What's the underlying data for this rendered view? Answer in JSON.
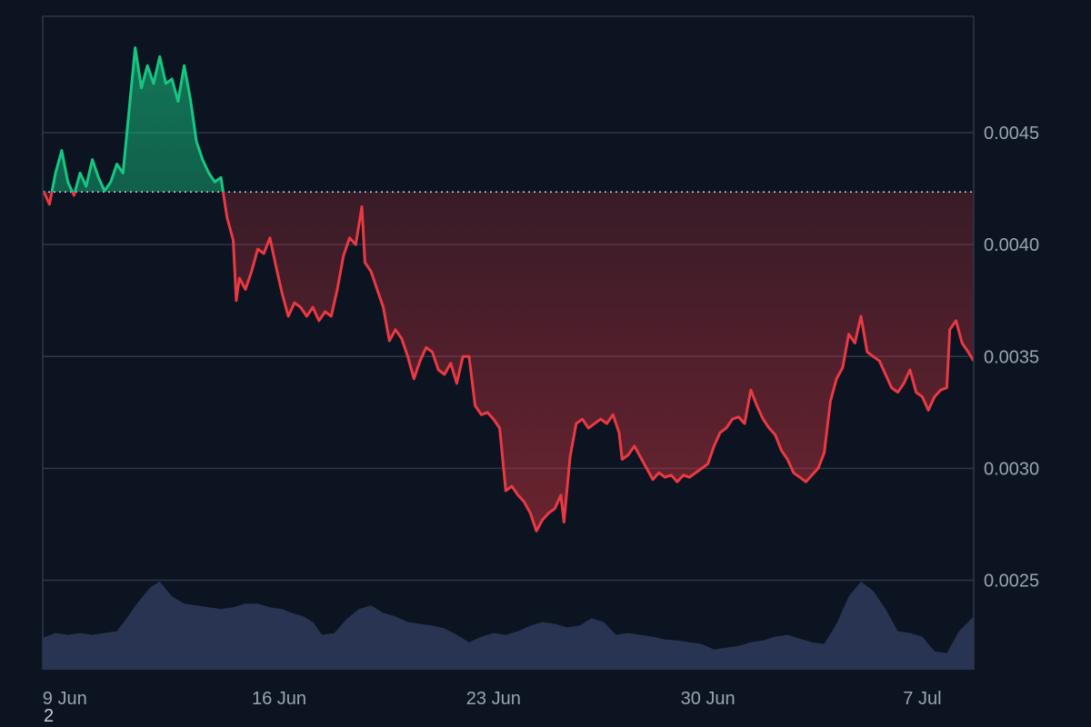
{
  "chart_data": {
    "type": "area",
    "baseline": 0.004235,
    "colors": {
      "background": "#0d1421",
      "above": "#16c784",
      "below": "#ea3943",
      "grid": "#2e3648",
      "volume": "#2f3a5c",
      "text": "#9aa3b2"
    },
    "y_range": [
      0.0021,
      0.00502
    ],
    "y_ticks": [
      {
        "value": 0.0025,
        "label": "0.0025"
      },
      {
        "value": 0.003,
        "label": "0.0030"
      },
      {
        "value": 0.0035,
        "label": "0.0035"
      },
      {
        "value": 0.004,
        "label": "0.0040"
      },
      {
        "value": 0.0045,
        "label": "0.0045"
      }
    ],
    "x_range": [
      8.28,
      38.68
    ],
    "x_ticks": [
      {
        "value": 9,
        "label": "9 Jun"
      },
      {
        "value": 16,
        "label": "16 Jun"
      },
      {
        "value": 23,
        "label": "23 Jun"
      },
      {
        "value": 30,
        "label": "30 Jun"
      },
      {
        "value": 37,
        "label": "7 Jul"
      }
    ],
    "x_unit_note": "day of June (9 Jun = 9, 7 Jul = 37)",
    "series": [
      {
        "values": [
          [
            8.3,
            0.00424
          ],
          [
            8.5,
            0.00418
          ],
          [
            8.7,
            0.00432
          ],
          [
            8.9,
            0.00442
          ],
          [
            9.1,
            0.00428
          ],
          [
            9.3,
            0.00422
          ],
          [
            9.5,
            0.00432
          ],
          [
            9.7,
            0.00426
          ],
          [
            9.9,
            0.00438
          ],
          [
            10.1,
            0.0043
          ],
          [
            10.3,
            0.00424
          ],
          [
            10.5,
            0.00428
          ],
          [
            10.7,
            0.00436
          ],
          [
            10.9,
            0.00432
          ],
          [
            11.1,
            0.0046
          ],
          [
            11.3,
            0.00488
          ],
          [
            11.5,
            0.0047
          ],
          [
            11.7,
            0.0048
          ],
          [
            11.9,
            0.00472
          ],
          [
            12.1,
            0.00484
          ],
          [
            12.3,
            0.00472
          ],
          [
            12.5,
            0.00474
          ],
          [
            12.7,
            0.00464
          ],
          [
            12.9,
            0.0048
          ],
          [
            13.1,
            0.00465
          ],
          [
            13.3,
            0.00446
          ],
          [
            13.5,
            0.00438
          ],
          [
            13.7,
            0.00432
          ],
          [
            13.9,
            0.00428
          ],
          [
            14.1,
            0.0043
          ],
          [
            14.3,
            0.00412
          ],
          [
            14.5,
            0.00402
          ],
          [
            14.6,
            0.00375
          ],
          [
            14.7,
            0.00385
          ],
          [
            14.9,
            0.0038
          ],
          [
            15.1,
            0.00388
          ],
          [
            15.3,
            0.00398
          ],
          [
            15.5,
            0.00396
          ],
          [
            15.7,
            0.00403
          ],
          [
            15.9,
            0.0039
          ],
          [
            16.1,
            0.00378
          ],
          [
            16.3,
            0.00368
          ],
          [
            16.5,
            0.00374
          ],
          [
            16.7,
            0.00372
          ],
          [
            16.9,
            0.00368
          ],
          [
            17.1,
            0.00372
          ],
          [
            17.3,
            0.00366
          ],
          [
            17.5,
            0.0037
          ],
          [
            17.7,
            0.00368
          ],
          [
            17.9,
            0.0038
          ],
          [
            18.1,
            0.00395
          ],
          [
            18.3,
            0.00403
          ],
          [
            18.5,
            0.004
          ],
          [
            18.7,
            0.00417
          ],
          [
            18.8,
            0.00392
          ],
          [
            19.0,
            0.00388
          ],
          [
            19.2,
            0.0038
          ],
          [
            19.4,
            0.00372
          ],
          [
            19.6,
            0.00357
          ],
          [
            19.8,
            0.00362
          ],
          [
            20.0,
            0.00358
          ],
          [
            20.2,
            0.0035
          ],
          [
            20.4,
            0.0034
          ],
          [
            20.6,
            0.00348
          ],
          [
            20.8,
            0.00354
          ],
          [
            21.0,
            0.00352
          ],
          [
            21.2,
            0.00344
          ],
          [
            21.4,
            0.00342
          ],
          [
            21.6,
            0.00347
          ],
          [
            21.8,
            0.00338
          ],
          [
            22.0,
            0.0035
          ],
          [
            22.2,
            0.0035
          ],
          [
            22.4,
            0.00328
          ],
          [
            22.6,
            0.00324
          ],
          [
            22.8,
            0.00325
          ],
          [
            23.0,
            0.00322
          ],
          [
            23.2,
            0.00318
          ],
          [
            23.4,
            0.0029
          ],
          [
            23.6,
            0.00292
          ],
          [
            23.8,
            0.00288
          ],
          [
            24.0,
            0.00285
          ],
          [
            24.2,
            0.0028
          ],
          [
            24.4,
            0.00272
          ],
          [
            24.6,
            0.00277
          ],
          [
            24.8,
            0.0028
          ],
          [
            25.0,
            0.00282
          ],
          [
            25.2,
            0.00288
          ],
          [
            25.3,
            0.00276
          ],
          [
            25.5,
            0.00305
          ],
          [
            25.7,
            0.0032
          ],
          [
            25.9,
            0.00322
          ],
          [
            26.1,
            0.00318
          ],
          [
            26.3,
            0.0032
          ],
          [
            26.5,
            0.00322
          ],
          [
            26.7,
            0.0032
          ],
          [
            26.9,
            0.00324
          ],
          [
            27.1,
            0.00316
          ],
          [
            27.2,
            0.00304
          ],
          [
            27.4,
            0.00306
          ],
          [
            27.6,
            0.0031
          ],
          [
            27.8,
            0.00305
          ],
          [
            28.0,
            0.003
          ],
          [
            28.2,
            0.00295
          ],
          [
            28.4,
            0.00298
          ],
          [
            28.6,
            0.00296
          ],
          [
            28.8,
            0.00297
          ],
          [
            29.0,
            0.00294
          ],
          [
            29.2,
            0.00297
          ],
          [
            29.4,
            0.00296
          ],
          [
            29.6,
            0.00298
          ],
          [
            29.8,
            0.003
          ],
          [
            30.0,
            0.00302
          ],
          [
            30.2,
            0.0031
          ],
          [
            30.4,
            0.00316
          ],
          [
            30.6,
            0.00318
          ],
          [
            30.8,
            0.00322
          ],
          [
            31.0,
            0.00323
          ],
          [
            31.2,
            0.0032
          ],
          [
            31.4,
            0.00335
          ],
          [
            31.6,
            0.00328
          ],
          [
            31.8,
            0.00322
          ],
          [
            32.0,
            0.00318
          ],
          [
            32.2,
            0.00315
          ],
          [
            32.4,
            0.00308
          ],
          [
            32.6,
            0.00304
          ],
          [
            32.8,
            0.00298
          ],
          [
            33.0,
            0.00296
          ],
          [
            33.2,
            0.00294
          ],
          [
            33.4,
            0.00297
          ],
          [
            33.6,
            0.003
          ],
          [
            33.8,
            0.00307
          ],
          [
            34.0,
            0.0033
          ],
          [
            34.2,
            0.0034
          ],
          [
            34.4,
            0.00345
          ],
          [
            34.6,
            0.0036
          ],
          [
            34.8,
            0.00356
          ],
          [
            35.0,
            0.00368
          ],
          [
            35.2,
            0.00352
          ],
          [
            35.4,
            0.0035
          ],
          [
            35.6,
            0.00348
          ],
          [
            35.8,
            0.00342
          ],
          [
            36.0,
            0.00336
          ],
          [
            36.2,
            0.00334
          ],
          [
            36.4,
            0.00338
          ],
          [
            36.6,
            0.00344
          ],
          [
            36.8,
            0.00334
          ],
          [
            37.0,
            0.00332
          ],
          [
            37.2,
            0.00326
          ],
          [
            37.4,
            0.00332
          ],
          [
            37.6,
            0.00335
          ],
          [
            37.8,
            0.00336
          ],
          [
            37.9,
            0.00362
          ],
          [
            38.1,
            0.00366
          ],
          [
            38.3,
            0.00356
          ],
          [
            38.5,
            0.00352
          ],
          [
            38.68,
            0.00348
          ]
        ]
      }
    ],
    "volume_profile": [
      [
        8.3,
        0.35
      ],
      [
        8.7,
        0.4
      ],
      [
        9.1,
        0.38
      ],
      [
        9.5,
        0.4
      ],
      [
        9.9,
        0.38
      ],
      [
        10.3,
        0.4
      ],
      [
        10.7,
        0.42
      ],
      [
        11.0,
        0.55
      ],
      [
        11.4,
        0.74
      ],
      [
        11.8,
        0.9
      ],
      [
        12.1,
        0.96
      ],
      [
        12.5,
        0.8
      ],
      [
        12.9,
        0.72
      ],
      [
        13.3,
        0.7
      ],
      [
        13.7,
        0.68
      ],
      [
        14.1,
        0.66
      ],
      [
        14.5,
        0.68
      ],
      [
        14.9,
        0.72
      ],
      [
        15.3,
        0.72
      ],
      [
        15.7,
        0.68
      ],
      [
        16.1,
        0.66
      ],
      [
        16.4,
        0.62
      ],
      [
        16.8,
        0.58
      ],
      [
        17.1,
        0.52
      ],
      [
        17.4,
        0.38
      ],
      [
        17.8,
        0.4
      ],
      [
        18.2,
        0.55
      ],
      [
        18.6,
        0.66
      ],
      [
        19.0,
        0.7
      ],
      [
        19.4,
        0.62
      ],
      [
        19.8,
        0.58
      ],
      [
        20.2,
        0.52
      ],
      [
        20.6,
        0.5
      ],
      [
        21.0,
        0.48
      ],
      [
        21.4,
        0.45
      ],
      [
        21.8,
        0.38
      ],
      [
        22.2,
        0.3
      ],
      [
        22.6,
        0.36
      ],
      [
        23.0,
        0.4
      ],
      [
        23.4,
        0.38
      ],
      [
        23.8,
        0.42
      ],
      [
        24.2,
        0.48
      ],
      [
        24.6,
        0.52
      ],
      [
        25.0,
        0.5
      ],
      [
        25.4,
        0.46
      ],
      [
        25.8,
        0.48
      ],
      [
        26.2,
        0.56
      ],
      [
        26.6,
        0.52
      ],
      [
        27.0,
        0.38
      ],
      [
        27.4,
        0.4
      ],
      [
        27.8,
        0.38
      ],
      [
        28.2,
        0.36
      ],
      [
        28.6,
        0.33
      ],
      [
        29.0,
        0.32
      ],
      [
        29.4,
        0.3
      ],
      [
        29.8,
        0.28
      ],
      [
        30.2,
        0.22
      ],
      [
        30.6,
        0.24
      ],
      [
        31.0,
        0.26
      ],
      [
        31.4,
        0.3
      ],
      [
        31.8,
        0.32
      ],
      [
        32.2,
        0.36
      ],
      [
        32.6,
        0.38
      ],
      [
        33.0,
        0.34
      ],
      [
        33.4,
        0.3
      ],
      [
        33.8,
        0.28
      ],
      [
        34.2,
        0.5
      ],
      [
        34.6,
        0.8
      ],
      [
        35.0,
        0.96
      ],
      [
        35.4,
        0.86
      ],
      [
        35.8,
        0.66
      ],
      [
        36.2,
        0.42
      ],
      [
        36.6,
        0.4
      ],
      [
        37.0,
        0.36
      ],
      [
        37.4,
        0.2
      ],
      [
        37.8,
        0.18
      ],
      [
        38.2,
        0.42
      ],
      [
        38.68,
        0.58
      ]
    ],
    "grid": true,
    "legend": "none"
  },
  "corner_label": "2"
}
